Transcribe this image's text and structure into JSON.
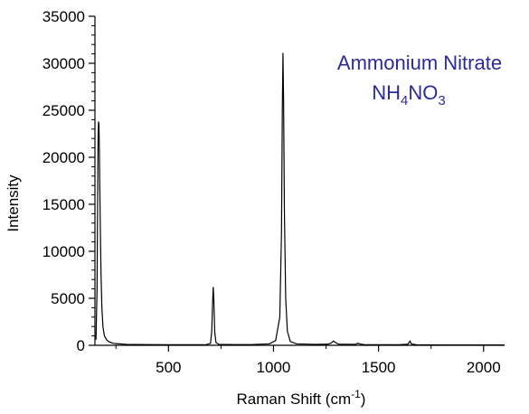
{
  "chart_data": {
    "type": "line",
    "xlabel": "Raman Shift (cm",
    "xlabel_sup": "-1",
    "xlabel_suffix": ")",
    "ylabel": "Intensity",
    "xlim": [
      150,
      2100
    ],
    "ylim": [
      0,
      35000
    ],
    "x_ticks": [
      500,
      1000,
      1500,
      2000
    ],
    "y_ticks": [
      0,
      5000,
      10000,
      15000,
      20000,
      25000,
      30000,
      35000
    ],
    "x_tick_labels": [
      "500",
      "1000",
      "1500",
      "2000"
    ],
    "y_tick_labels": [
      "0",
      "5000",
      "10000",
      "15000",
      "20000",
      "25000",
      "30000",
      "35000"
    ],
    "annotation": {
      "line1": "Ammonium Nitrate",
      "formula": [
        {
          "text": "NH",
          "sub": false
        },
        {
          "text": "4",
          "sub": true
        },
        {
          "text": "NO",
          "sub": false
        },
        {
          "text": "3",
          "sub": true
        }
      ],
      "color": "#2b2b9a"
    },
    "grid": false,
    "line_color": "#000000",
    "series": [
      {
        "values": [
          [
            155,
            600
          ],
          [
            160,
            6000
          ],
          [
            163,
            16000
          ],
          [
            165,
            22000
          ],
          [
            167,
            23800
          ],
          [
            169,
            23500
          ],
          [
            171,
            21000
          ],
          [
            173,
            17000
          ],
          [
            176,
            12000
          ],
          [
            179,
            7500
          ],
          [
            183,
            4000
          ],
          [
            188,
            2000
          ],
          [
            195,
            1000
          ],
          [
            205,
            600
          ],
          [
            215,
            400
          ],
          [
            225,
            300
          ],
          [
            240,
            200
          ],
          [
            300,
            100
          ],
          [
            400,
            80
          ],
          [
            500,
            60
          ],
          [
            600,
            60
          ],
          [
            680,
            80
          ],
          [
            700,
            200
          ],
          [
            706,
            1500
          ],
          [
            710,
            4500
          ],
          [
            713,
            6200
          ],
          [
            716,
            4800
          ],
          [
            720,
            1500
          ],
          [
            726,
            300
          ],
          [
            740,
            100
          ],
          [
            800,
            80
          ],
          [
            900,
            90
          ],
          [
            980,
            150
          ],
          [
            1010,
            500
          ],
          [
            1030,
            3000
          ],
          [
            1038,
            12000
          ],
          [
            1042,
            25000
          ],
          [
            1045,
            31100
          ],
          [
            1048,
            26000
          ],
          [
            1052,
            14000
          ],
          [
            1058,
            5000
          ],
          [
            1066,
            1500
          ],
          [
            1080,
            400
          ],
          [
            1110,
            150
          ],
          [
            1200,
            100
          ],
          [
            1260,
            120
          ],
          [
            1275,
            250
          ],
          [
            1285,
            450
          ],
          [
            1295,
            300
          ],
          [
            1310,
            120
          ],
          [
            1390,
            100
          ],
          [
            1402,
            220
          ],
          [
            1410,
            150
          ],
          [
            1430,
            80
          ],
          [
            1600,
            60
          ],
          [
            1640,
            120
          ],
          [
            1650,
            450
          ],
          [
            1656,
            150
          ],
          [
            1680,
            60
          ],
          [
            1800,
            40
          ],
          [
            2000,
            40
          ],
          [
            2100,
            40
          ]
        ]
      }
    ]
  }
}
